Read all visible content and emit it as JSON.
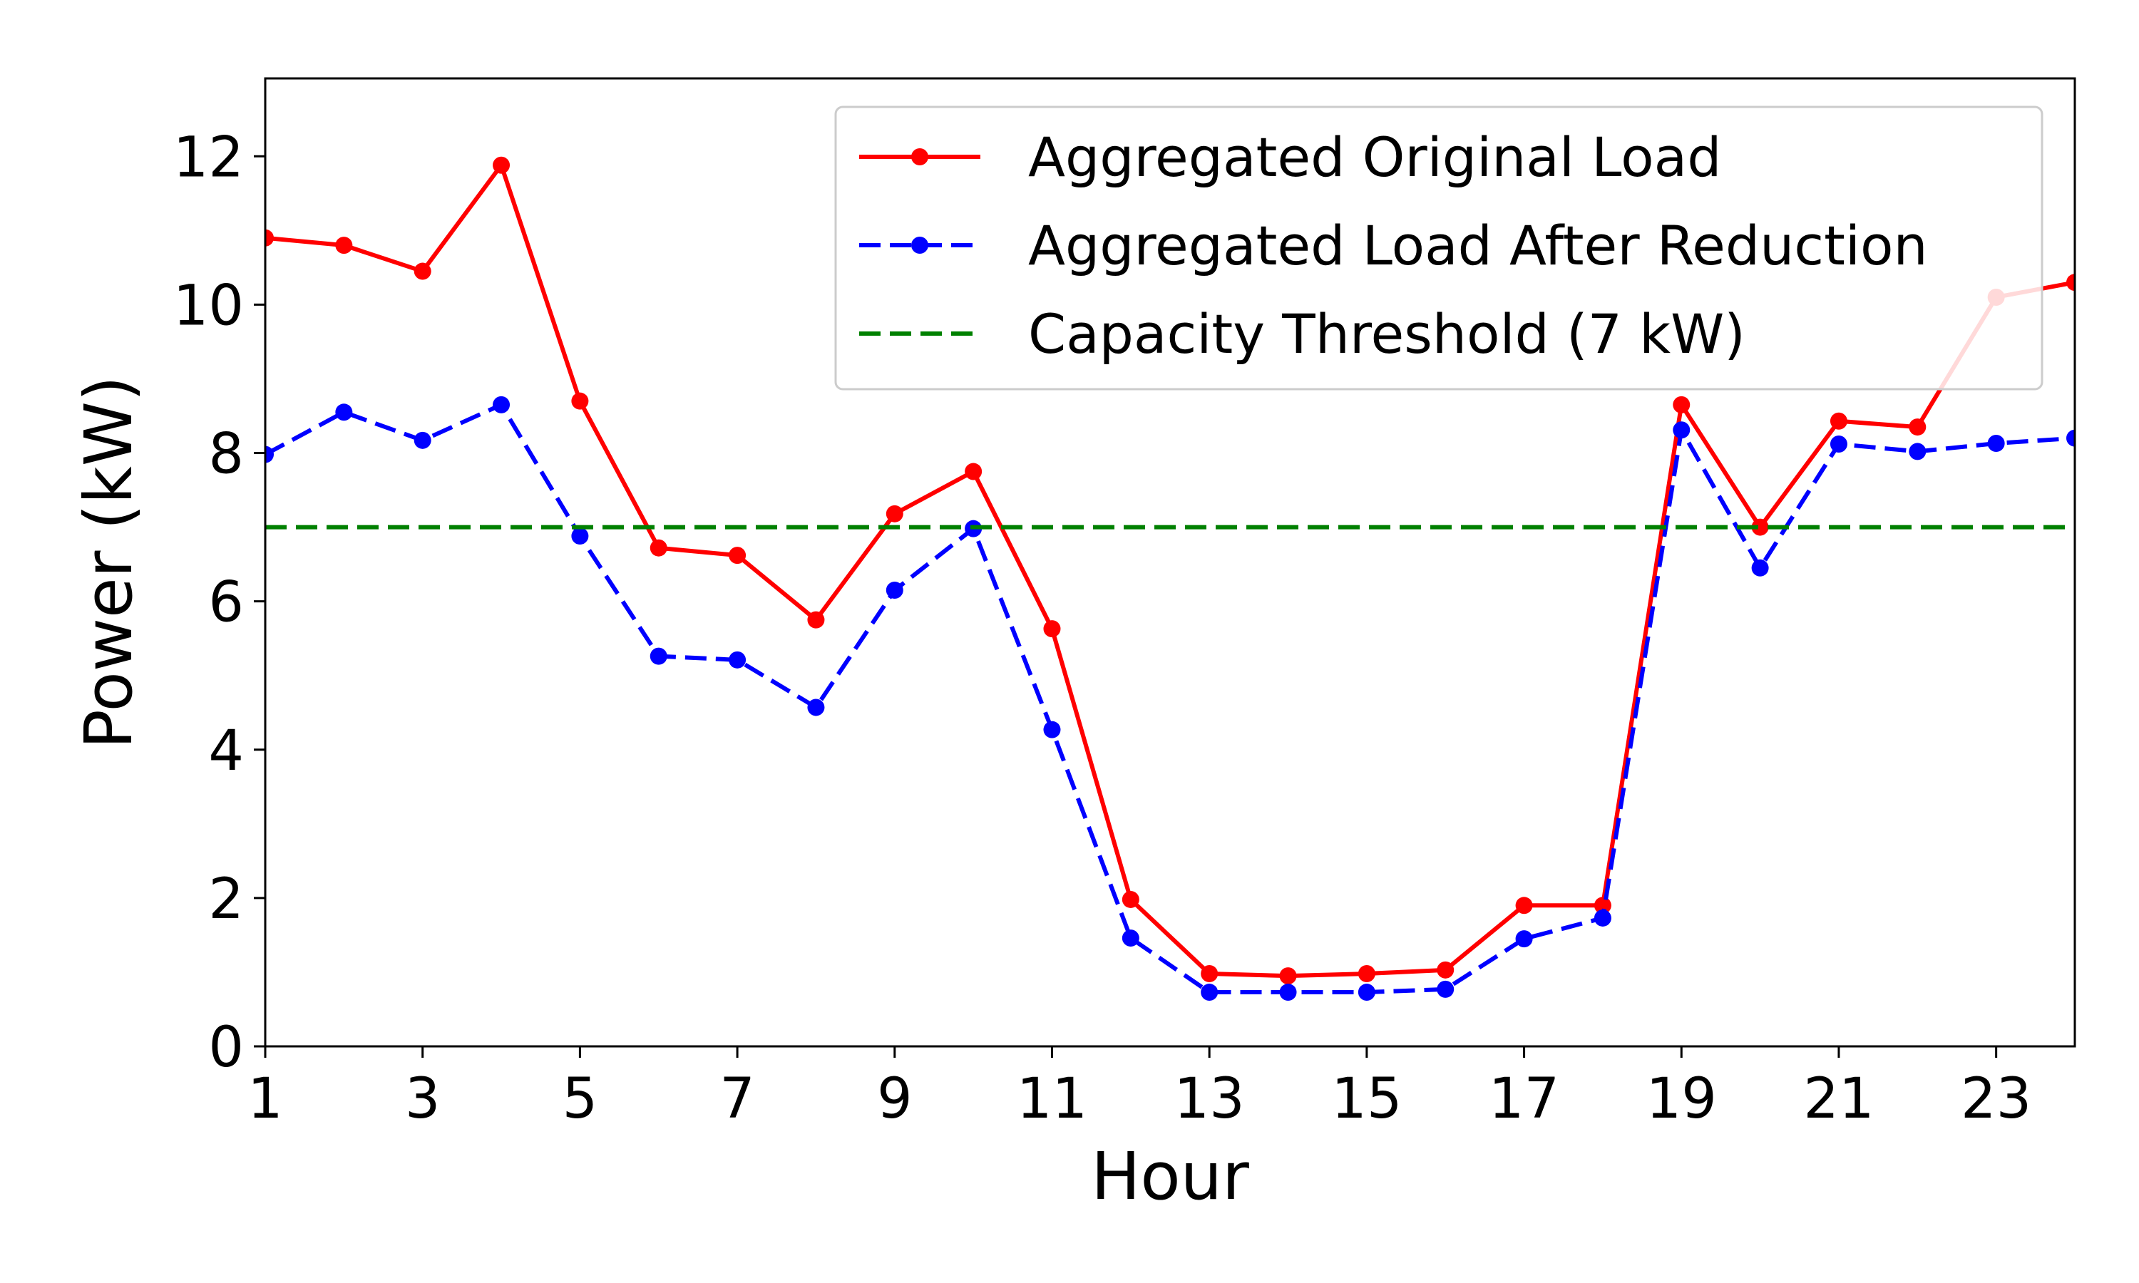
{
  "chart_data": {
    "type": "line",
    "title": "",
    "xlabel": "Hour",
    "ylabel": "Power (kW)",
    "xlim": [
      1,
      24
    ],
    "ylim": [
      0,
      13.05
    ],
    "xticks": [
      1,
      3,
      5,
      7,
      9,
      11,
      13,
      15,
      17,
      19,
      21,
      23
    ],
    "yticks": [
      0,
      2,
      4,
      6,
      8,
      10,
      12
    ],
    "grid": false,
    "legend_position": "top-right",
    "x": [
      1,
      2,
      3,
      4,
      5,
      6,
      7,
      8,
      9,
      10,
      11,
      12,
      13,
      14,
      15,
      16,
      17,
      18,
      19,
      20,
      21,
      22,
      23,
      24
    ],
    "series": [
      {
        "name": "Aggregated Original Load",
        "color": "#ff0000",
        "line_style": "solid",
        "marker": "circle",
        "values": [
          10.9,
          10.8,
          10.45,
          11.88,
          8.7,
          6.72,
          6.62,
          5.75,
          7.18,
          7.75,
          5.63,
          1.98,
          0.98,
          0.95,
          0.98,
          1.03,
          1.9,
          1.9,
          8.65,
          7.0,
          8.43,
          8.35,
          10.1,
          10.3
        ]
      },
      {
        "name": "Aggregated Load After Reduction",
        "color": "#0000ff",
        "line_style": "dashed",
        "marker": "circle",
        "values": [
          7.98,
          8.55,
          8.17,
          8.65,
          6.88,
          5.26,
          5.21,
          4.57,
          6.15,
          6.98,
          4.27,
          1.46,
          0.73,
          0.73,
          0.73,
          0.77,
          1.45,
          1.73,
          8.31,
          6.45,
          8.12,
          8.02,
          8.13,
          8.2
        ]
      },
      {
        "name": "Capacity Threshold (7 kW)",
        "color": "#008000",
        "line_style": "dashed",
        "marker": "none",
        "constant": 7
      }
    ]
  }
}
